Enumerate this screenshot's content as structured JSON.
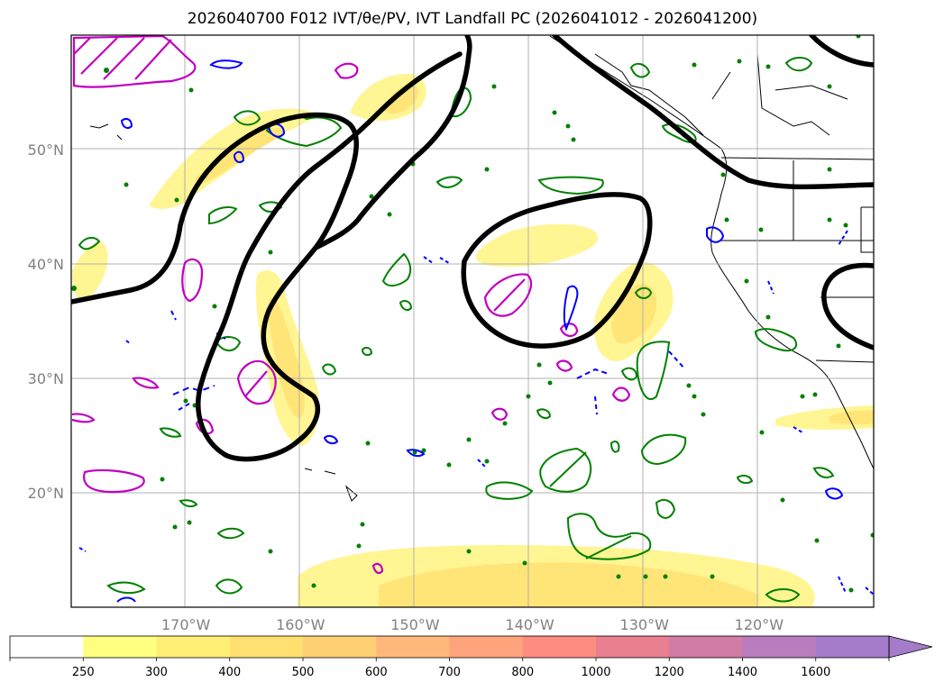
{
  "title": "2026040700 F012 IVT/θe/PV, IVT Landfall PC (2026041012 - 2026041200)",
  "map": {
    "extent": {
      "lon_min": 180,
      "lon_max": 110,
      "lat_min": 10,
      "lat_max": 60
    },
    "lat_ticks": [
      {
        "value": 50,
        "label": "50°N"
      },
      {
        "value": 40,
        "label": "40°N"
      },
      {
        "value": 30,
        "label": "30°N"
      },
      {
        "value": 20,
        "label": "20°N"
      }
    ],
    "lon_ticks": [
      {
        "value": 170,
        "label": "170°W"
      },
      {
        "value": 160,
        "label": "160°W"
      },
      {
        "value": 150,
        "label": "150°W"
      },
      {
        "value": 140,
        "label": "140°W"
      },
      {
        "value": 130,
        "label": "130°W"
      },
      {
        "value": 120,
        "label": "120°W"
      }
    ],
    "layers": [
      "IVT shading",
      "IVT landfall principal component",
      "theta-e contours",
      "potential vorticity contours"
    ],
    "colors": {
      "pc_contour": "#000000",
      "pv_contour": "#c000c0",
      "thetae_contour": "#008000",
      "blue_contour": "#0000ff",
      "coast": "#000000"
    }
  },
  "colorbar": {
    "ticks": [
      "250",
      "300",
      "400",
      "500",
      "600",
      "700",
      "800",
      "1000",
      "1200",
      "1400",
      "1600"
    ],
    "colors": [
      "#ffff80",
      "#ffef75",
      "#ffe070",
      "#ffcf74",
      "#ffb87c",
      "#ffa37d",
      "#ff8c80",
      "#ea7f8f",
      "#d07ca7",
      "#b97cbf",
      "#a57cc9"
    ],
    "extend": "max"
  }
}
